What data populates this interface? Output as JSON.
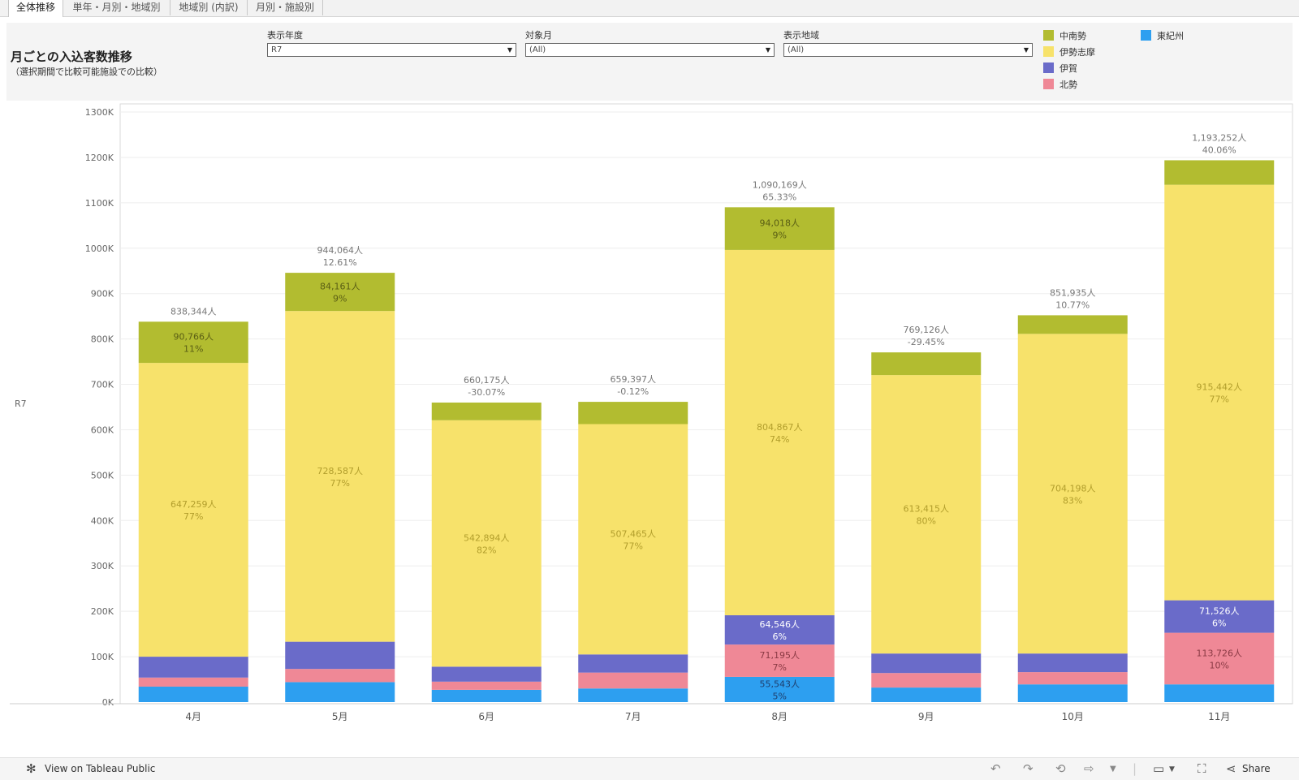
{
  "tabs": [
    {
      "label": "全体推移",
      "active": true
    },
    {
      "label": "単年・月別・地域別",
      "active": false
    },
    {
      "label": "地域別 (内訳)",
      "active": false
    },
    {
      "label": "月別・施設別",
      "active": false
    }
  ],
  "header": {
    "title": "月ごとの入込客数推移",
    "subtitle": "（選択期間で比較可能施設での比較）"
  },
  "filters": [
    {
      "label": "表示年度",
      "value": "R7"
    },
    {
      "label": "対象月",
      "value": "(All)"
    },
    {
      "label": "表示地域",
      "value": "(All)"
    }
  ],
  "legend": [
    {
      "name": "中南勢",
      "color": "#b2bc30"
    },
    {
      "name": "伊勢志摩",
      "color": "#f7e26b"
    },
    {
      "name": "伊賀",
      "color": "#6a6bc9"
    },
    {
      "name": "北勢",
      "color": "#ef8896"
    },
    {
      "name": "東紀州",
      "color": "#2d9ff0"
    }
  ],
  "row_label": "R7",
  "chart_data": {
    "type": "bar",
    "stacked": true,
    "categories": [
      "4月",
      "5月",
      "6月",
      "7月",
      "8月",
      "9月",
      "10月",
      "11月"
    ],
    "series": [
      {
        "name": "東紀州",
        "values": [
          34000,
          44000,
          27000,
          30000,
          55543,
          32000,
          39000,
          39000
        ]
      },
      {
        "name": "北勢",
        "values": [
          20000,
          29000,
          18000,
          35000,
          71195,
          32000,
          27000,
          113726
        ]
      },
      {
        "name": "伊賀",
        "values": [
          46000,
          60000,
          33000,
          40000,
          64546,
          43000,
          41000,
          71526
        ]
      },
      {
        "name": "伊勢志摩",
        "values": [
          647259,
          728587,
          542894,
          507465,
          804867,
          613415,
          704198,
          915442
        ]
      },
      {
        "name": "中南勢",
        "values": [
          90766,
          84161,
          39000,
          49000,
          94018,
          50000,
          41000,
          54000
        ]
      }
    ],
    "totals": [
      838344,
      944064,
      660175,
      659397,
      1090169,
      769126,
      851935,
      1193252
    ],
    "total_labels": [
      "838,344人",
      "944,064人",
      "660,175人",
      "659,397人",
      "1,090,169人",
      "769,126人",
      "851,935人",
      "1,193,252人"
    ],
    "growth_labels": [
      "",
      "12.61%",
      "-30.07%",
      "-0.12%",
      "65.33%",
      "-29.45%",
      "10.77%",
      "40.06%"
    ],
    "segment_labels": [
      {
        "category": "4月",
        "series": "中南勢",
        "value": "90,766人",
        "pct": "11%"
      },
      {
        "category": "4月",
        "series": "伊勢志摩",
        "value": "647,259人",
        "pct": "77%"
      },
      {
        "category": "5月",
        "series": "中南勢",
        "value": "84,161人",
        "pct": "9%"
      },
      {
        "category": "5月",
        "series": "伊勢志摩",
        "value": "728,587人",
        "pct": "77%"
      },
      {
        "category": "6月",
        "series": "伊勢志摩",
        "value": "542,894人",
        "pct": "82%"
      },
      {
        "category": "7月",
        "series": "伊勢志摩",
        "value": "507,465人",
        "pct": "77%"
      },
      {
        "category": "8月",
        "series": "中南勢",
        "value": "94,018人",
        "pct": "9%"
      },
      {
        "category": "8月",
        "series": "伊勢志摩",
        "value": "804,867人",
        "pct": "74%"
      },
      {
        "category": "8月",
        "series": "伊賀",
        "value": "64,546人",
        "pct": "6%"
      },
      {
        "category": "8月",
        "series": "北勢",
        "value": "71,195人",
        "pct": "7%"
      },
      {
        "category": "8月",
        "series": "東紀州",
        "value": "55,543人",
        "pct": "5%"
      },
      {
        "category": "9月",
        "series": "伊勢志摩",
        "value": "613,415人",
        "pct": "80%"
      },
      {
        "category": "10月",
        "series": "伊勢志摩",
        "value": "704,198人",
        "pct": "83%"
      },
      {
        "category": "11月",
        "series": "伊勢志摩",
        "value": "915,442人",
        "pct": "77%"
      },
      {
        "category": "11月",
        "series": "伊賀",
        "value": "71,526人",
        "pct": "6%"
      },
      {
        "category": "11月",
        "series": "北勢",
        "value": "113,726人",
        "pct": "10%"
      }
    ],
    "y_ticks": [
      0,
      100000,
      200000,
      300000,
      400000,
      500000,
      600000,
      700000,
      800000,
      900000,
      1000000,
      1100000,
      1200000,
      1300000
    ],
    "y_tick_labels": [
      "0K",
      "100K",
      "200K",
      "300K",
      "400K",
      "500K",
      "600K",
      "700K",
      "800K",
      "900K",
      "1000K",
      "1100K",
      "1200K",
      "1300K"
    ],
    "ylim": [
      0,
      1300000
    ],
    "grid": true,
    "legend_position": "top-right"
  },
  "footer": {
    "view_label": "View on Tableau Public",
    "share_label": "Share"
  }
}
